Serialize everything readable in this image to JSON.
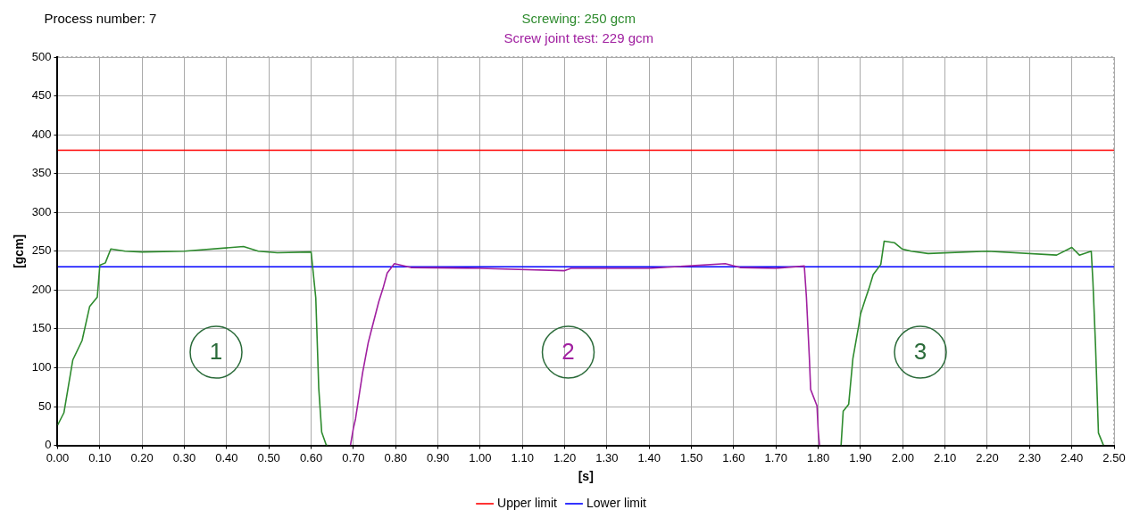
{
  "chart_data": {
    "type": "line",
    "title": "Process number: 7",
    "xlabel": "[s]",
    "ylabel": "[gcm]",
    "xlim": [
      0,
      2.5
    ],
    "ylim": [
      0,
      500
    ],
    "xticks": [
      {
        "value": 0,
        "label": "0.00"
      },
      {
        "value": 0.1,
        "label": "0.10"
      },
      {
        "value": 0.2,
        "label": "0.20"
      },
      {
        "value": 0.3,
        "label": "0.30"
      },
      {
        "value": 0.4,
        "label": "0.40"
      },
      {
        "value": 0.5,
        "label": "0.50"
      },
      {
        "value": 0.6,
        "label": "0.60"
      },
      {
        "value": 0.7,
        "label": "0.70"
      },
      {
        "value": 0.8,
        "label": "0.80"
      },
      {
        "value": 0.9,
        "label": "0.90"
      },
      {
        "value": 1,
        "label": "1.00"
      },
      {
        "value": 1.1,
        "label": "1.10"
      },
      {
        "value": 1.2,
        "label": "1.20"
      },
      {
        "value": 1.3,
        "label": "1.30"
      },
      {
        "value": 1.4,
        "label": "1.40"
      },
      {
        "value": 1.5,
        "label": "1.50"
      },
      {
        "value": 1.6,
        "label": "1.60"
      },
      {
        "value": 1.7,
        "label": "1.70"
      },
      {
        "value": 1.8,
        "label": "1.80"
      },
      {
        "value": 1.9,
        "label": "1.90"
      },
      {
        "value": 2,
        "label": "2.00"
      },
      {
        "value": 2.1,
        "label": "2.10"
      },
      {
        "value": 2.2,
        "label": "2.20"
      },
      {
        "value": 2.3,
        "label": "2.30"
      },
      {
        "value": 2.4,
        "label": "2.40"
      },
      {
        "value": 2.5,
        "label": "2.50"
      }
    ],
    "yticks": [
      0,
      50,
      100,
      150,
      200,
      250,
      300,
      350,
      400,
      450,
      500
    ],
    "grid": true,
    "legend": "bottom",
    "marker": "none",
    "line_style": "solid",
    "series": [
      {
        "name": "Screwing: 250 gcm",
        "color": "#2e8b2e",
        "x": [
          0,
          0.015,
          0.036,
          0.058,
          0.076,
          0.094,
          0.1,
          0.113,
          0.126,
          0.16,
          0.2,
          0.3,
          0.44,
          0.475,
          0.52,
          0.6,
          0.611,
          0.618,
          0.625,
          0.636,
          0.64,
          0.7,
          1.854,
          1.859,
          1.872,
          1.882,
          1.896,
          1.9,
          1.913,
          1.92,
          1.93,
          1.948,
          1.956,
          1.98,
          1.998,
          2.02,
          2.06,
          2.2,
          2.364,
          2.4,
          2.418,
          2.446,
          2.45,
          2.456,
          2.463,
          2.475
        ],
        "values": [
          26,
          42,
          110,
          135,
          179,
          191,
          232,
          235,
          253,
          250,
          249,
          250,
          256,
          250,
          248,
          249,
          190,
          74,
          17,
          0,
          0,
          null,
          0,
          44,
          53,
          112,
          155,
          169,
          191,
          202,
          220,
          233,
          263,
          261,
          253,
          250,
          247,
          250,
          245,
          255,
          245,
          250,
          210,
          130,
          16,
          0
        ]
      },
      {
        "name": "Screw joint test: 229 gcm",
        "color": "#a020a0",
        "x": [
          0.693,
          0.7,
          0.705,
          0.722,
          0.735,
          0.742,
          0.76,
          0.77,
          0.78,
          0.797,
          0.836,
          1.0,
          1.2,
          1.215,
          1.4,
          1.58,
          1.615,
          1.7,
          1.767,
          1.772,
          1.779,
          1.782,
          1.797,
          1.8,
          1.803
        ],
        "values": [
          0,
          22,
          34,
          94,
          132,
          147,
          185,
          202,
          222,
          234,
          229,
          228,
          225,
          228,
          228,
          234,
          229,
          228,
          231,
          191,
          112,
          72,
          51,
          18,
          0
        ]
      }
    ],
    "ref_lines": [
      {
        "axis": "y",
        "value": 380,
        "label": "Upper limit",
        "color": "#ff0000"
      },
      {
        "axis": "y",
        "value": 230,
        "label": "Lower limit",
        "color": "#0000ff"
      }
    ],
    "annotations": [
      "1",
      "2",
      "3"
    ]
  }
}
